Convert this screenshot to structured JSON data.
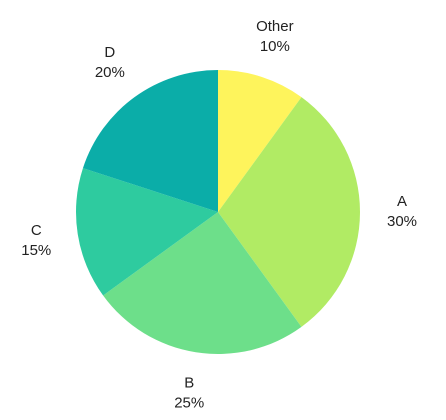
{
  "chart_data": {
    "type": "pie",
    "categories": [
      "Other",
      "A",
      "B",
      "C",
      "D"
    ],
    "values": [
      10,
      30,
      25,
      15,
      20
    ],
    "value_labels": [
      "10%",
      "30%",
      "25%",
      "15%",
      "20%"
    ],
    "colors": [
      "#fef45c",
      "#b1eb64",
      "#6ddf8a",
      "#2ecb9f",
      "#0bada8"
    ]
  }
}
